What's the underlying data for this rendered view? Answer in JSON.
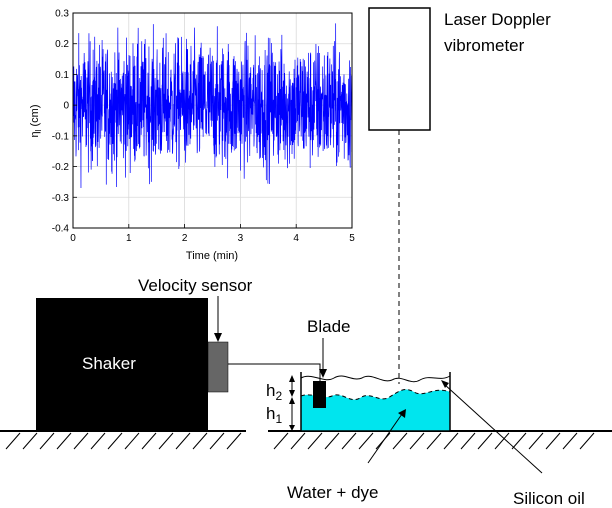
{
  "labels": {
    "laser_line1": "Laser Doppler",
    "laser_line2": "vibrometer",
    "velocity_sensor": "Velocity sensor",
    "blade": "Blade",
    "shaker": "Shaker",
    "h2": "h",
    "h2_sub": "2",
    "h1": "h",
    "h1_sub": "1",
    "water_dye": "Water + dye",
    "silicon_oil": "Silicon oil"
  },
  "colors": {
    "signal": "#0000ff",
    "water": "#00e5ee",
    "shaker": "#000000",
    "sensor": "#666666"
  },
  "chart_data": {
    "type": "line",
    "xlabel": "Time (min)",
    "ylabel": "η",
    "ylabel_sub": "l",
    "ylabel_unit": " (cm)",
    "xlim": [
      0,
      5
    ],
    "ylim": [
      -0.4,
      0.3
    ],
    "xticks": [
      "0",
      "1",
      "2",
      "3",
      "4",
      "5"
    ],
    "yticks": [
      "0.3",
      "0.2",
      "0.1",
      "0",
      "-0.1",
      "-0.2",
      "-0.3",
      "-0.4"
    ],
    "grid": true,
    "series": [
      {
        "signal": "random broadband elevation",
        "typical_amplitude": 0.12,
        "peak_max": 0.3,
        "peak_min": -0.33
      }
    ]
  }
}
